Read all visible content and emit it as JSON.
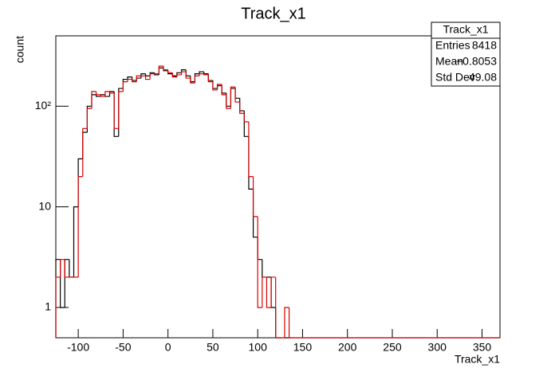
{
  "chart_data": {
    "type": "histogram",
    "title": "Track_x1",
    "xlabel": "Track_x1",
    "ylabel": "count",
    "bins": [
      -125,
      -120,
      -115,
      -110,
      -105,
      -100,
      -95,
      -90,
      -85,
      -80,
      -75,
      -70,
      -65,
      -60,
      -55,
      -50,
      -45,
      -40,
      -35,
      -30,
      -25,
      -20,
      -15,
      -10,
      -5,
      0,
      5,
      10,
      15,
      20,
      25,
      30,
      35,
      40,
      45,
      50,
      55,
      60,
      65,
      70,
      75,
      80,
      85,
      90,
      95,
      100,
      105,
      110,
      115,
      120,
      125,
      130,
      135,
      140,
      145,
      150,
      155,
      160,
      165,
      170,
      175,
      180,
      185,
      190,
      195,
      200,
      205,
      210,
      215,
      220,
      225,
      230,
      235,
      240,
      245,
      250,
      255,
      260,
      265,
      270,
      275,
      280,
      285,
      290,
      295,
      300,
      305,
      310,
      315,
      320,
      325,
      330,
      335,
      340,
      345,
      350,
      355,
      360,
      365,
      370
    ],
    "series": [
      {
        "color": "#000000",
        "values": [
          3,
          1,
          3,
          2,
          10,
          30,
          55,
          100,
          130,
          125,
          130,
          125,
          140,
          50,
          150,
          185,
          195,
          180,
          190,
          210,
          200,
          215,
          205,
          240,
          225,
          210,
          200,
          215,
          230,
          200,
          175,
          210,
          220,
          210,
          180,
          150,
          160,
          135,
          100,
          150,
          120,
          90,
          50,
          15,
          5,
          3,
          2,
          2,
          1,
          0,
          0,
          0,
          0,
          0,
          0,
          0,
          0,
          0,
          0,
          0,
          0,
          0,
          0,
          0,
          0,
          0,
          0,
          0,
          0,
          0,
          0,
          0,
          0,
          0,
          0,
          0,
          0,
          0,
          0,
          0,
          0,
          0,
          0,
          0,
          0,
          0,
          0,
          0,
          0,
          0,
          0,
          0,
          0,
          0,
          0,
          0,
          0,
          0,
          0
        ]
      },
      {
        "color": "#dd0000",
        "values": [
          2,
          3,
          2,
          2,
          2,
          20,
          60,
          95,
          140,
          130,
          125,
          140,
          135,
          60,
          140,
          175,
          185,
          175,
          200,
          200,
          185,
          210,
          210,
          250,
          230,
          215,
          195,
          205,
          220,
          190,
          170,
          200,
          210,
          205,
          175,
          145,
          165,
          130,
          95,
          155,
          110,
          85,
          70,
          20,
          8,
          1,
          2,
          1,
          2,
          0,
          0,
          1,
          0,
          0,
          0,
          0,
          0,
          0,
          0,
          0,
          0,
          0,
          0,
          0,
          0,
          0,
          0,
          0,
          0,
          0,
          0,
          0,
          0,
          0,
          0,
          0,
          0,
          0,
          0,
          0,
          0,
          0,
          0,
          0,
          0,
          0,
          0,
          0,
          0,
          0,
          0,
          0,
          0,
          0,
          0,
          0,
          0,
          0,
          0
        ]
      }
    ],
    "xlim": [
      -125,
      370
    ],
    "xticks": [
      -100,
      -50,
      0,
      50,
      100,
      150,
      200,
      250,
      300,
      350
    ],
    "ylim": [
      0.5,
      500
    ],
    "log_y": true,
    "yticks": [
      1,
      10,
      {
        "value": 100,
        "label": "10²"
      }
    ],
    "stats": {
      "title": "Track_x1",
      "rows": [
        [
          "Entries",
          "8418"
        ],
        [
          "Mean",
          "−0.8053"
        ],
        [
          "Std Dev",
          "49.08"
        ]
      ]
    }
  }
}
